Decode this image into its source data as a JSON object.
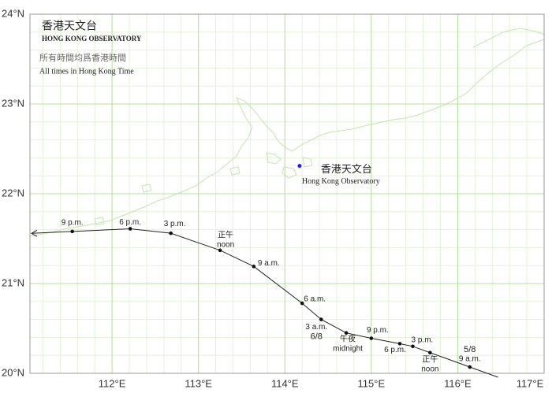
{
  "header": {
    "org_zh": "香港天文台",
    "org_en": "HONG KONG OBSERVATORY",
    "note_zh": "所有時間均爲香港時間",
    "note_en": "All times in Hong Kong Time"
  },
  "map": {
    "xlim": [
      111.05,
      117.0
    ],
    "ylim": [
      20.0,
      24.0
    ],
    "lon_ticks": [
      {
        "value": 112,
        "label": "112°E"
      },
      {
        "value": 113,
        "label": "113°E"
      },
      {
        "value": 114,
        "label": "114°E"
      },
      {
        "value": 115,
        "label": "115°E"
      },
      {
        "value": 116,
        "label": "116°E"
      },
      {
        "value": 117,
        "label": "117°E"
      }
    ],
    "lat_ticks": [
      {
        "value": 20,
        "label": "20°N"
      },
      {
        "value": 21,
        "label": "21°N"
      },
      {
        "value": 22,
        "label": "22°N"
      },
      {
        "value": 23,
        "label": "23°N"
      },
      {
        "value": 24,
        "label": "24°N"
      }
    ]
  },
  "observatory": {
    "lon": 114.17,
    "lat": 22.31,
    "name_zh": "香港天文台",
    "name_en": "Hong Kong Observatory"
  },
  "track": {
    "points": [
      {
        "lon": 116.14,
        "lat": 20.07,
        "date": "5/8",
        "label": "9 a.m."
      },
      {
        "lon": 115.68,
        "lat": 20.23,
        "label_zh": "正午",
        "label": "noon"
      },
      {
        "lon": 115.48,
        "lat": 20.3,
        "label": "3 p.m."
      },
      {
        "lon": 115.33,
        "lat": 20.33,
        "label": "6 p.m."
      },
      {
        "lon": 115.0,
        "lat": 20.39,
        "label": "9 p.m."
      },
      {
        "lon": 114.71,
        "lat": 20.45,
        "label_zh": "午夜",
        "label": "midnight"
      },
      {
        "lon": 114.42,
        "lat": 20.6,
        "label": "3 a.m.",
        "date": "6/8"
      },
      {
        "lon": 114.2,
        "lat": 20.78,
        "label": "6 a.m."
      },
      {
        "lon": 113.64,
        "lat": 21.19,
        "label": "9 a.m."
      },
      {
        "lon": 113.25,
        "lat": 21.37,
        "label_zh": "正午",
        "label": "noon"
      },
      {
        "lon": 112.68,
        "lat": 21.56,
        "label": "3 p.m."
      },
      {
        "lon": 112.21,
        "lat": 21.61,
        "label": "6 p.m."
      },
      {
        "lon": 111.54,
        "lat": 21.58,
        "label": "9 p.m."
      }
    ]
  }
}
